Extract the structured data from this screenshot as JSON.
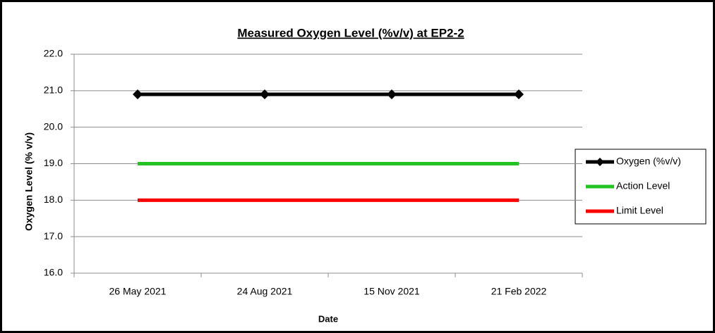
{
  "chart_data": {
    "type": "line",
    "title": "Measured Oxygen Level (%v/v) at EP2-2",
    "x_label": "Date",
    "y_label": "Oxygen Level (% v/v)",
    "categories": [
      "26 May 2021",
      "24 Aug 2021",
      "15 Nov 2021",
      "21 Feb 2022"
    ],
    "series": [
      {
        "name": "Oxygen (%v/v)",
        "color": "#000000",
        "marker": "diamond",
        "values": [
          20.9,
          20.9,
          20.9,
          20.9
        ]
      },
      {
        "name": "Action Level",
        "color": "#22c322",
        "values": [
          19,
          19,
          19,
          19
        ]
      },
      {
        "name": "Limit Level",
        "color": "#ff0000",
        "values": [
          18,
          18,
          18,
          18
        ]
      }
    ],
    "ylim": [
      16,
      22
    ],
    "yticks": [
      {
        "value": 16,
        "label": "16.0"
      },
      {
        "value": 17,
        "label": "17.0"
      },
      {
        "value": 18,
        "label": "18.0"
      },
      {
        "value": 19,
        "label": "19.0"
      },
      {
        "value": 20,
        "label": "20.0"
      },
      {
        "value": 21,
        "label": "21.0"
      },
      {
        "value": 22,
        "label": "22.0"
      }
    ],
    "grid": true,
    "legend": "right"
  }
}
